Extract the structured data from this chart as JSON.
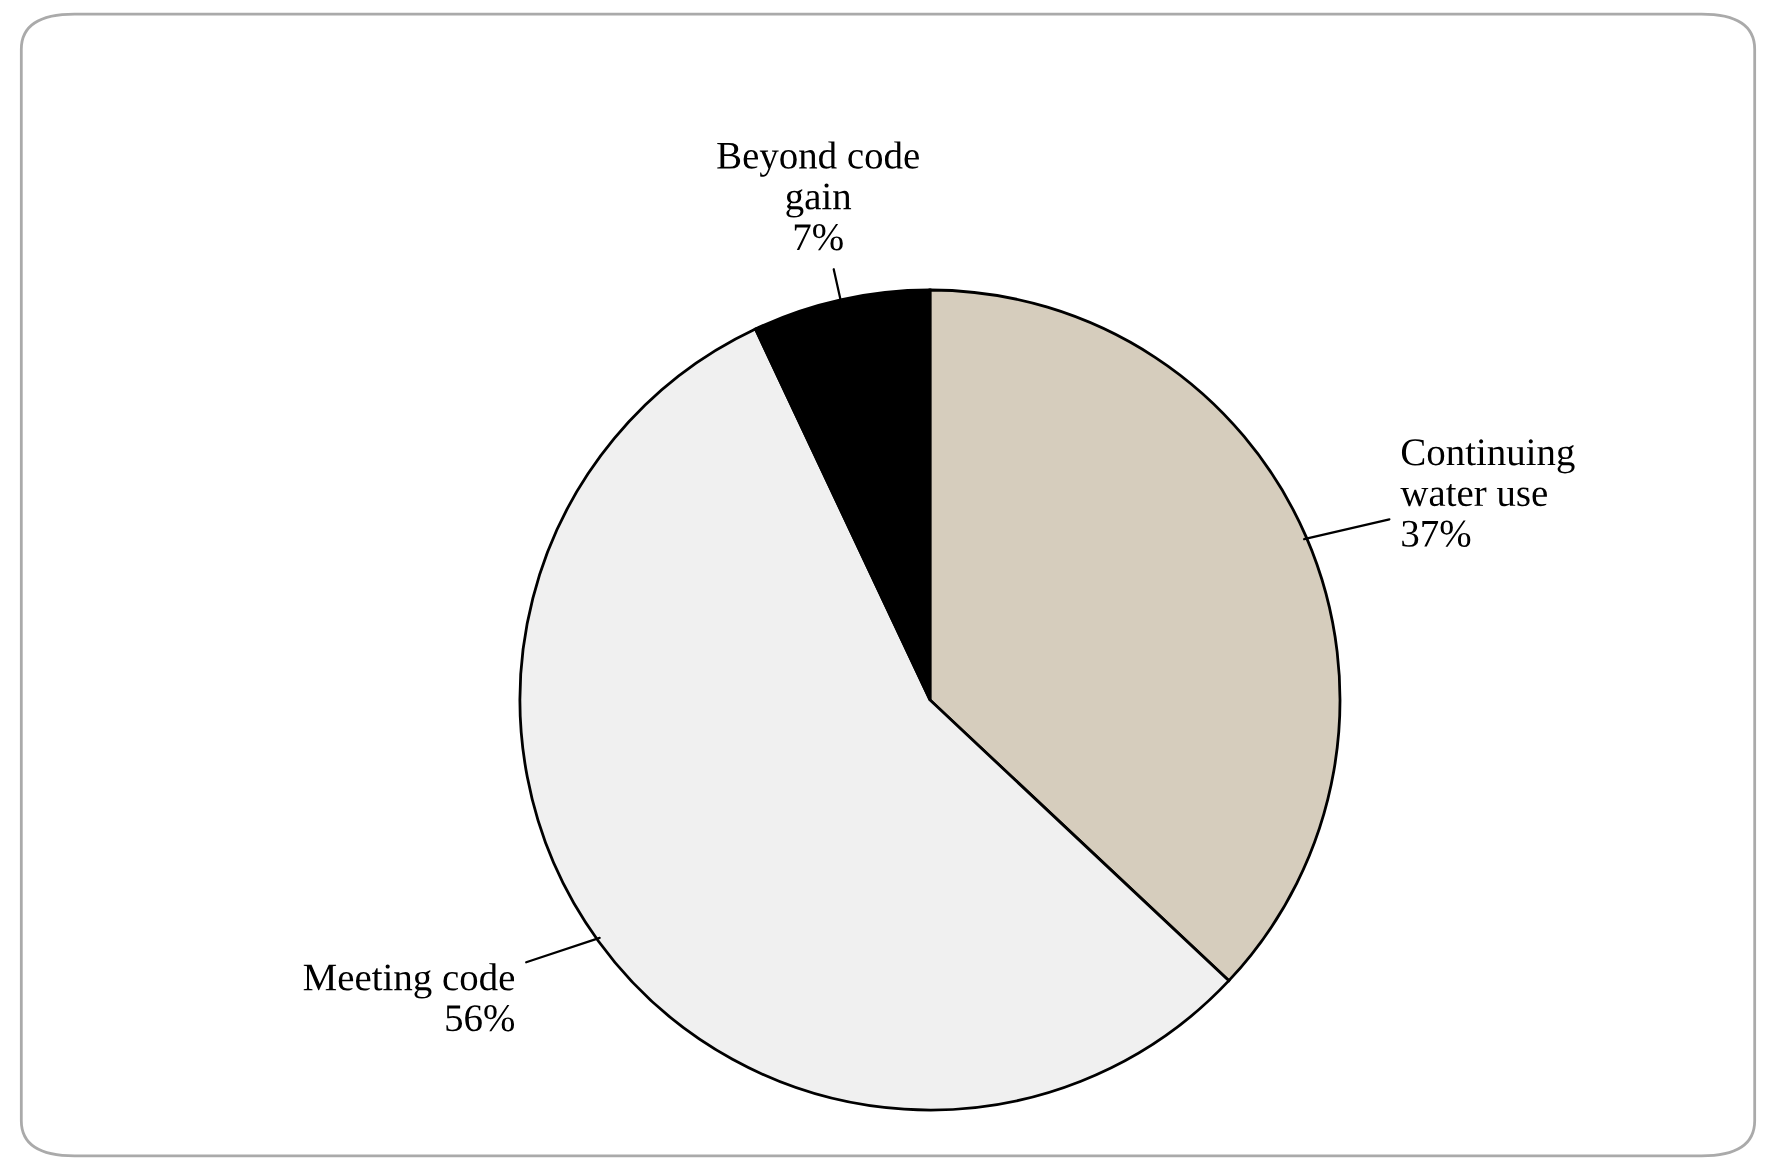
{
  "chart_data": {
    "type": "pie",
    "categories": [
      "Continuing\nwater use",
      "Meeting code",
      "Beyond code\ngain"
    ],
    "values": [
      37,
      56,
      7
    ],
    "colors": [
      "#d6cdbd",
      "#f0f0f0",
      "#000000"
    ],
    "value_labels": [
      "37%",
      "56%",
      "7%"
    ],
    "legend": false
  }
}
